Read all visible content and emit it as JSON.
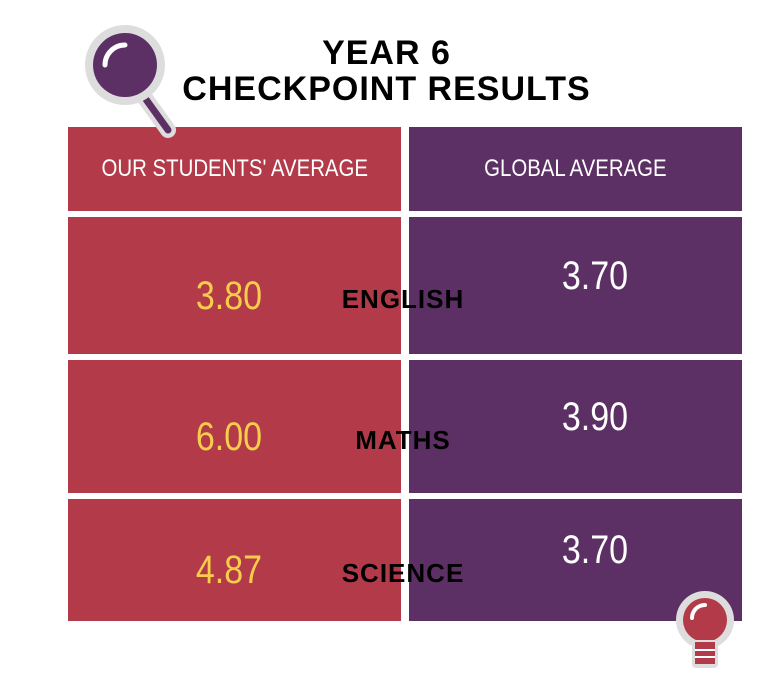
{
  "title": {
    "line1": "YEAR 6",
    "line2": "CHECKPOINT RESULTS"
  },
  "table": {
    "headers": [
      "OUR STUDENTS' AVERAGE",
      "GLOBAL AVERAGE"
    ],
    "rows": [
      {
        "subject": "ENGLISH",
        "ours": "3.80",
        "global": "3.70"
      },
      {
        "subject": "MATHS",
        "ours": "6.00",
        "global": "3.90"
      },
      {
        "subject": "SCIENCE",
        "ours": "4.87",
        "global": "3.70"
      }
    ]
  }
}
